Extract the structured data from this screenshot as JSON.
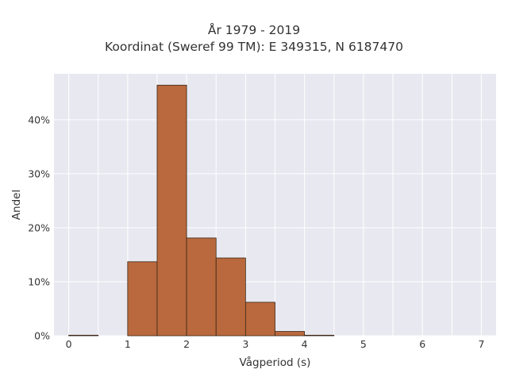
{
  "chart_data": {
    "type": "bar",
    "title_line1": "År 1979 - 2019",
    "title_line2": "Koordinat (Sweref 99 TM): E 349315, N 6187470",
    "xlabel": "Vågperiod (s)",
    "ylabel": "Andel",
    "bin_width": 0.5,
    "bins_start": [
      0,
      0.5,
      1.0,
      1.5,
      2.0,
      2.5,
      3.0,
      3.5,
      4.0
    ],
    "values": [
      0.1,
      0,
      13.7,
      46.4,
      18.1,
      14.4,
      6.2,
      0.8,
      0.1
    ],
    "xlim": [
      -0.25,
      7.25
    ],
    "ylim": [
      0,
      48.5
    ],
    "xticks": [
      0,
      1,
      2,
      3,
      4,
      5,
      6,
      7
    ],
    "xtick_labels": [
      "0",
      "1",
      "2",
      "3",
      "4",
      "5",
      "6",
      "7"
    ],
    "yticks": [
      0,
      10,
      20,
      30,
      40
    ],
    "ytick_labels": [
      "0%",
      "10%",
      "20%",
      "30%",
      "40%"
    ],
    "grid": true,
    "colors": {
      "bar_fill": "#b9693d",
      "bar_edge": "#3a2516",
      "plot_bg": "#e8e8f0",
      "grid": "#ffffff",
      "text": "#333333"
    }
  }
}
